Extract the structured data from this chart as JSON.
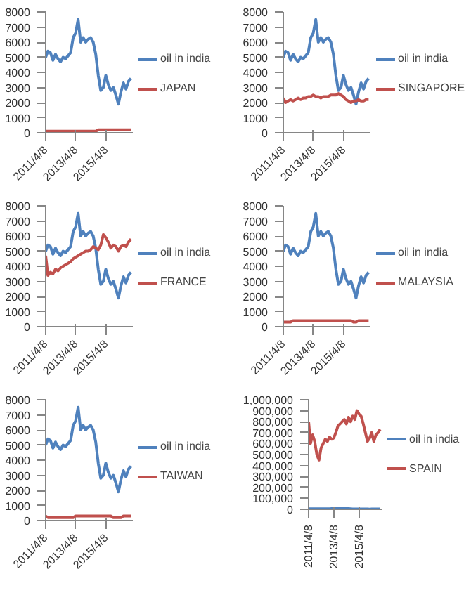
{
  "chart_data": [
    {
      "type": "line",
      "x": [
        "2011-04-08",
        "2011-06",
        "2011-08",
        "2011-10",
        "2011-12",
        "2012-02",
        "2012-04",
        "2012-06",
        "2012-08",
        "2012-10",
        "2012-12",
        "2013-02",
        "2013-04",
        "2013-06",
        "2013-08",
        "2013-10",
        "2013-12",
        "2014-02",
        "2014-04",
        "2014-06",
        "2014-08",
        "2014-10",
        "2014-12",
        "2015-02",
        "2015-04",
        "2015-06",
        "2015-08",
        "2015-10",
        "2015-12",
        "2016-02",
        "2016-04",
        "2016-06",
        "2016-08",
        "2016-10",
        "2016-12"
      ],
      "xlim": [
        "2011-04-08",
        "2017-01-15"
      ],
      "xticks": [
        {
          "value": "2011-04-08",
          "label": "2011/4/8"
        },
        {
          "value": "2013-04-08",
          "label": "2013/4/8"
        },
        {
          "value": "2015-04-08",
          "label": "2015/4/8"
        }
      ],
      "ylim": [
        0,
        8000
      ],
      "yticks": [
        0,
        1000,
        2000,
        3000,
        4000,
        5000,
        6000,
        7000,
        8000
      ],
      "grid": false,
      "legend": "right",
      "series": [
        {
          "name": "oil in india",
          "color": "#4f81bd",
          "values": [
            5000,
            5400,
            5300,
            4800,
            5200,
            4900,
            4700,
            5000,
            4900,
            5100,
            5300,
            6300,
            6600,
            7500,
            6000,
            6300,
            6000,
            6200,
            6300,
            6000,
            5200,
            3800,
            2800,
            3000,
            3800,
            3200,
            2800,
            3000,
            2500,
            1900,
            2700,
            3300,
            2900,
            3400,
            3600
          ]
        },
        {
          "name": "JAPAN",
          "color": "#c0504d",
          "values": [
            100,
            100,
            100,
            100,
            100,
            100,
            100,
            100,
            100,
            100,
            100,
            100,
            100,
            100,
            100,
            100,
            100,
            100,
            100,
            100,
            100,
            200,
            200,
            200,
            200,
            200,
            200,
            200,
            200,
            200,
            200,
            200,
            200,
            200,
            200
          ]
        }
      ]
    },
    {
      "type": "line",
      "x": [
        "2011-04-08",
        "2011-06",
        "2011-08",
        "2011-10",
        "2011-12",
        "2012-02",
        "2012-04",
        "2012-06",
        "2012-08",
        "2012-10",
        "2012-12",
        "2013-02",
        "2013-04",
        "2013-06",
        "2013-08",
        "2013-10",
        "2013-12",
        "2014-02",
        "2014-04",
        "2014-06",
        "2014-08",
        "2014-10",
        "2014-12",
        "2015-02",
        "2015-04",
        "2015-06",
        "2015-08",
        "2015-10",
        "2015-12",
        "2016-02",
        "2016-04",
        "2016-06",
        "2016-08",
        "2016-10",
        "2016-12"
      ],
      "xlim": [
        "2011-04-08",
        "2017-01-15"
      ],
      "xticks": [
        {
          "value": "2011-04-08",
          "label": "2011/4/8"
        },
        {
          "value": "2013-04-08",
          "label": "2013/4/8"
        },
        {
          "value": "2015-04-08",
          "label": "2015/4/8"
        }
      ],
      "ylim": [
        0,
        8000
      ],
      "yticks": [
        0,
        1000,
        2000,
        3000,
        4000,
        5000,
        6000,
        7000,
        8000
      ],
      "grid": false,
      "legend": "right",
      "series": [
        {
          "name": "oil in india",
          "color": "#4f81bd",
          "values": [
            5000,
            5400,
            5300,
            4800,
            5200,
            4900,
            4700,
            5000,
            4900,
            5100,
            5300,
            6300,
            6600,
            7500,
            6000,
            6300,
            6000,
            6200,
            6300,
            6000,
            5200,
            3800,
            2800,
            3000,
            3800,
            3200,
            2800,
            3000,
            2500,
            1900,
            2700,
            3300,
            2900,
            3400,
            3600
          ]
        },
        {
          "name": "SINGAPORE",
          "color": "#c0504d",
          "values": [
            2300,
            2000,
            2100,
            2200,
            2100,
            2200,
            2300,
            2200,
            2300,
            2300,
            2400,
            2400,
            2500,
            2400,
            2400,
            2300,
            2400,
            2400,
            2400,
            2500,
            2500,
            2500,
            2600,
            2500,
            2400,
            2200,
            2100,
            2000,
            2100,
            2100,
            2200,
            2100,
            2100,
            2200,
            2200
          ]
        }
      ]
    },
    {
      "type": "line",
      "x": [
        "2011-04-08",
        "2011-06",
        "2011-08",
        "2011-10",
        "2011-12",
        "2012-02",
        "2012-04",
        "2012-06",
        "2012-08",
        "2012-10",
        "2012-12",
        "2013-02",
        "2013-04",
        "2013-06",
        "2013-08",
        "2013-10",
        "2013-12",
        "2014-02",
        "2014-04",
        "2014-06",
        "2014-08",
        "2014-10",
        "2014-12",
        "2015-02",
        "2015-04",
        "2015-06",
        "2015-08",
        "2015-10",
        "2015-12",
        "2016-02",
        "2016-04",
        "2016-06",
        "2016-08",
        "2016-10",
        "2016-12"
      ],
      "xlim": [
        "2011-04-08",
        "2017-01-15"
      ],
      "xticks": [
        {
          "value": "2011-04-08",
          "label": "2011/4/8"
        },
        {
          "value": "2013-04-08",
          "label": "2013/4/8"
        },
        {
          "value": "2015-04-08",
          "label": "2015/4/8"
        }
      ],
      "ylim": [
        0,
        8000
      ],
      "yticks": [
        0,
        1000,
        2000,
        3000,
        4000,
        5000,
        6000,
        7000,
        8000
      ],
      "grid": false,
      "legend": "right",
      "series": [
        {
          "name": "oil in india",
          "color": "#4f81bd",
          "values": [
            5000,
            5400,
            5300,
            4800,
            5200,
            4900,
            4700,
            5000,
            4900,
            5100,
            5300,
            6300,
            6600,
            7500,
            6000,
            6300,
            6000,
            6200,
            6300,
            6000,
            5200,
            3800,
            2800,
            3000,
            3800,
            3200,
            2800,
            3000,
            2500,
            1900,
            2700,
            3300,
            2900,
            3400,
            3600
          ]
        },
        {
          "name": "FRANCE",
          "color": "#c0504d",
          "values": [
            4700,
            3400,
            3600,
            3500,
            3800,
            3700,
            3900,
            4000,
            4100,
            4200,
            4300,
            4500,
            4600,
            4700,
            4800,
            4900,
            5000,
            5000,
            5100,
            5300,
            5200,
            5100,
            5400,
            6100,
            5900,
            5600,
            5200,
            5400,
            5300,
            5000,
            5300,
            5400,
            5300,
            5600,
            5800
          ]
        }
      ]
    },
    {
      "type": "line",
      "x": [
        "2011-04-08",
        "2011-06",
        "2011-08",
        "2011-10",
        "2011-12",
        "2012-02",
        "2012-04",
        "2012-06",
        "2012-08",
        "2012-10",
        "2012-12",
        "2013-02",
        "2013-04",
        "2013-06",
        "2013-08",
        "2013-10",
        "2013-12",
        "2014-02",
        "2014-04",
        "2014-06",
        "2014-08",
        "2014-10",
        "2014-12",
        "2015-02",
        "2015-04",
        "2015-06",
        "2015-08",
        "2015-10",
        "2015-12",
        "2016-02",
        "2016-04",
        "2016-06",
        "2016-08",
        "2016-10",
        "2016-12"
      ],
      "xlim": [
        "2011-04-08",
        "2017-01-15"
      ],
      "xticks": [
        {
          "value": "2011-04-08",
          "label": "2011/4/8"
        },
        {
          "value": "2013-04-08",
          "label": "2013/4/8"
        },
        {
          "value": "2015-04-08",
          "label": "2015/4/8"
        }
      ],
      "ylim": [
        0,
        8000
      ],
      "yticks": [
        0,
        1000,
        2000,
        3000,
        4000,
        5000,
        6000,
        7000,
        8000
      ],
      "grid": false,
      "legend": "right",
      "series": [
        {
          "name": "oil in india",
          "color": "#4f81bd",
          "values": [
            5000,
            5400,
            5300,
            4800,
            5200,
            4900,
            4700,
            5000,
            4900,
            5100,
            5300,
            6300,
            6600,
            7500,
            6000,
            6300,
            6000,
            6200,
            6300,
            6000,
            5200,
            3800,
            2800,
            3000,
            3800,
            3200,
            2800,
            3000,
            2500,
            1900,
            2700,
            3300,
            2900,
            3400,
            3600
          ]
        },
        {
          "name": "MALAYSIA",
          "color": "#c0504d",
          "values": [
            300,
            300,
            300,
            300,
            400,
            400,
            400,
            400,
            400,
            400,
            400,
            400,
            400,
            400,
            400,
            400,
            400,
            400,
            400,
            400,
            400,
            400,
            400,
            400,
            400,
            400,
            400,
            400,
            300,
            300,
            400,
            400,
            400,
            400,
            400
          ]
        }
      ]
    },
    {
      "type": "line",
      "x": [
        "2011-04-08",
        "2011-06",
        "2011-08",
        "2011-10",
        "2011-12",
        "2012-02",
        "2012-04",
        "2012-06",
        "2012-08",
        "2012-10",
        "2012-12",
        "2013-02",
        "2013-04",
        "2013-06",
        "2013-08",
        "2013-10",
        "2013-12",
        "2014-02",
        "2014-04",
        "2014-06",
        "2014-08",
        "2014-10",
        "2014-12",
        "2015-02",
        "2015-04",
        "2015-06",
        "2015-08",
        "2015-10",
        "2015-12",
        "2016-02",
        "2016-04",
        "2016-06",
        "2016-08",
        "2016-10",
        "2016-12"
      ],
      "xlim": [
        "2011-04-08",
        "2017-01-15"
      ],
      "xticks": [
        {
          "value": "2011-04-08",
          "label": "2011/4/8"
        },
        {
          "value": "2013-04-08",
          "label": "2013/4/8"
        },
        {
          "value": "2015-04-08",
          "label": "2015/4/8"
        }
      ],
      "ylim": [
        0,
        8000
      ],
      "yticks": [
        0,
        1000,
        2000,
        3000,
        4000,
        5000,
        6000,
        7000,
        8000
      ],
      "grid": false,
      "legend": "right",
      "series": [
        {
          "name": "oil in india",
          "color": "#4f81bd",
          "values": [
            5000,
            5400,
            5300,
            4800,
            5200,
            4900,
            4700,
            5000,
            4900,
            5100,
            5300,
            6300,
            6600,
            7500,
            6000,
            6300,
            6000,
            6200,
            6300,
            6000,
            5200,
            3800,
            2800,
            3000,
            3800,
            3200,
            2800,
            3000,
            2500,
            1900,
            2700,
            3300,
            2900,
            3400,
            3600
          ]
        },
        {
          "name": "TAIWAN",
          "color": "#c0504d",
          "values": [
            300,
            200,
            200,
            200,
            200,
            200,
            200,
            200,
            200,
            200,
            200,
            200,
            300,
            300,
            300,
            300,
            300,
            300,
            300,
            300,
            300,
            300,
            300,
            300,
            300,
            300,
            300,
            200,
            200,
            200,
            200,
            300,
            300,
            300,
            300
          ]
        }
      ]
    },
    {
      "type": "line",
      "x": [
        "2011-04-08",
        "2011-06",
        "2011-08",
        "2011-10",
        "2011-12",
        "2012-02",
        "2012-04",
        "2012-06",
        "2012-08",
        "2012-10",
        "2012-12",
        "2013-02",
        "2013-04",
        "2013-06",
        "2013-08",
        "2013-10",
        "2013-12",
        "2014-02",
        "2014-04",
        "2014-06",
        "2014-08",
        "2014-10",
        "2014-12",
        "2015-02",
        "2015-04",
        "2015-06",
        "2015-08",
        "2015-10",
        "2015-12",
        "2016-02",
        "2016-04",
        "2016-06",
        "2016-08",
        "2016-10",
        "2016-12"
      ],
      "xlim": [
        "2011-04-08",
        "2017-01-15"
      ],
      "xticks": [
        {
          "value": "2011-04-08",
          "label": "2011/4/8"
        },
        {
          "value": "2013-04-08",
          "label": "2013/4/8"
        },
        {
          "value": "2015-04-08",
          "label": "2015/4/8"
        }
      ],
      "ylim": [
        0,
        1000000
      ],
      "yticks": [
        0,
        {
          "value": 100000,
          "label": "100,000"
        },
        {
          "value": 200000,
          "label": "200,000"
        },
        {
          "value": 300000,
          "label": "300,000"
        },
        {
          "value": 400000,
          "label": "400,000"
        },
        {
          "value": 500000,
          "label": "500,000"
        },
        {
          "value": 600000,
          "label": "600,000"
        },
        {
          "value": 700000,
          "label": "700,000"
        },
        {
          "value": 800000,
          "label": "800,000"
        },
        {
          "value": 900000,
          "label": "900,000"
        },
        {
          "value": 1000000,
          "label": "1,000,000"
        }
      ],
      "grid": false,
      "legend": "right",
      "series": [
        {
          "name": "oil in india",
          "color": "#4f81bd",
          "values": [
            5000,
            5400,
            5300,
            4800,
            5200,
            4900,
            4700,
            5000,
            4900,
            5100,
            5300,
            6300,
            6600,
            7500,
            6000,
            6300,
            6000,
            6200,
            6300,
            6000,
            5200,
            3800,
            2800,
            3000,
            3800,
            3200,
            2800,
            3000,
            2500,
            1900,
            2700,
            3300,
            2900,
            3400,
            3600
          ]
        },
        {
          "name": "SPAIN",
          "color": "#c0504d",
          "values": [
            800000,
            600000,
            680000,
            620000,
            500000,
            450000,
            560000,
            600000,
            640000,
            620000,
            660000,
            640000,
            650000,
            700000,
            760000,
            780000,
            800000,
            820000,
            780000,
            840000,
            800000,
            850000,
            820000,
            900000,
            870000,
            850000,
            780000,
            700000,
            620000,
            650000,
            700000,
            620000,
            680000,
            700000,
            730000
          ]
        }
      ]
    }
  ]
}
